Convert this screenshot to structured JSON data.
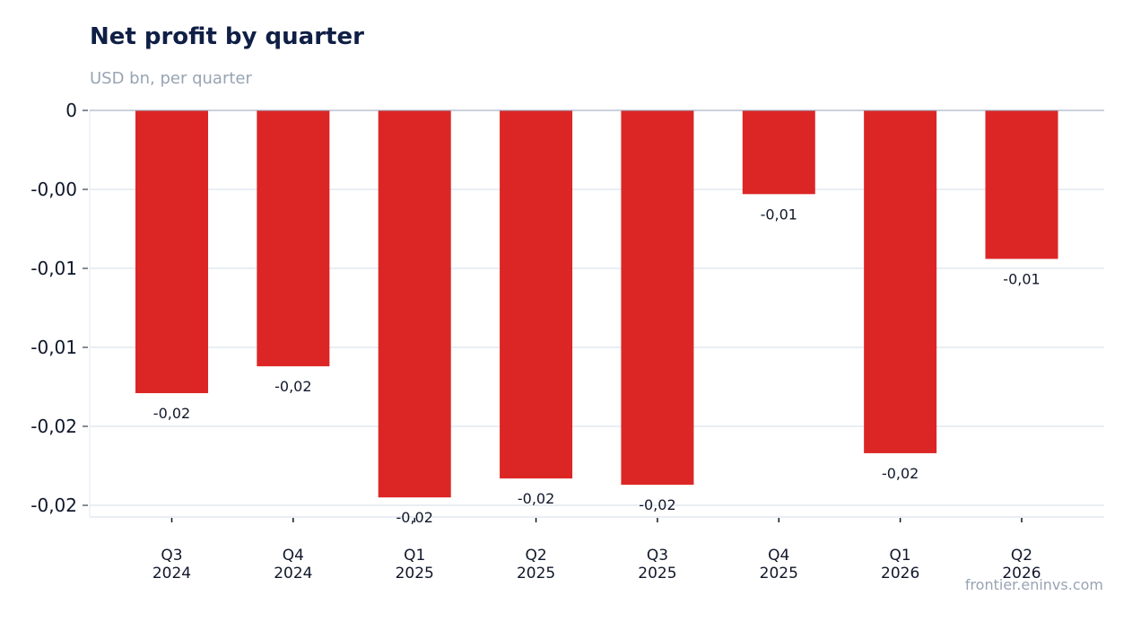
{
  "title": "Net profit by quarter",
  "subtitle": "USD bn, per quarter",
  "source": "frontier.eninvs.com",
  "colors": {
    "bar": "#dc2626",
    "grid": "#e2e8f0",
    "axis": "#94a3b8",
    "text": "#0f172a"
  },
  "chart_data": {
    "type": "bar",
    "categories": [
      [
        "Q3",
        "2024"
      ],
      [
        "Q4",
        "2024"
      ],
      [
        "Q1",
        "2025"
      ],
      [
        "Q2",
        "2025"
      ],
      [
        "Q3",
        "2025"
      ],
      [
        "Q4",
        "2025"
      ],
      [
        "Q1",
        "2026"
      ],
      [
        "Q2",
        "2026"
      ]
    ],
    "values": [
      -0.0179,
      -0.0162,
      -0.0245,
      -0.0233,
      -0.0237,
      -0.0053,
      -0.0217,
      -0.0094
    ],
    "data_labels": [
      "-0,02",
      "-0,02",
      "-0,02",
      "-0,02",
      "-0,02",
      "-0,01",
      "-0,02",
      "-0,01"
    ],
    "ylim": [
      -0.0257,
      0
    ],
    "yticks": [
      {
        "value": 0,
        "label": "0"
      },
      {
        "value": -0.005,
        "label": "-0,00"
      },
      {
        "value": -0.01,
        "label": "-0,01"
      },
      {
        "value": -0.015,
        "label": "-0,01"
      },
      {
        "value": -0.02,
        "label": "-0,02"
      },
      {
        "value": -0.025,
        "label": "-0,02"
      }
    ],
    "grid": true,
    "legend": "none"
  }
}
